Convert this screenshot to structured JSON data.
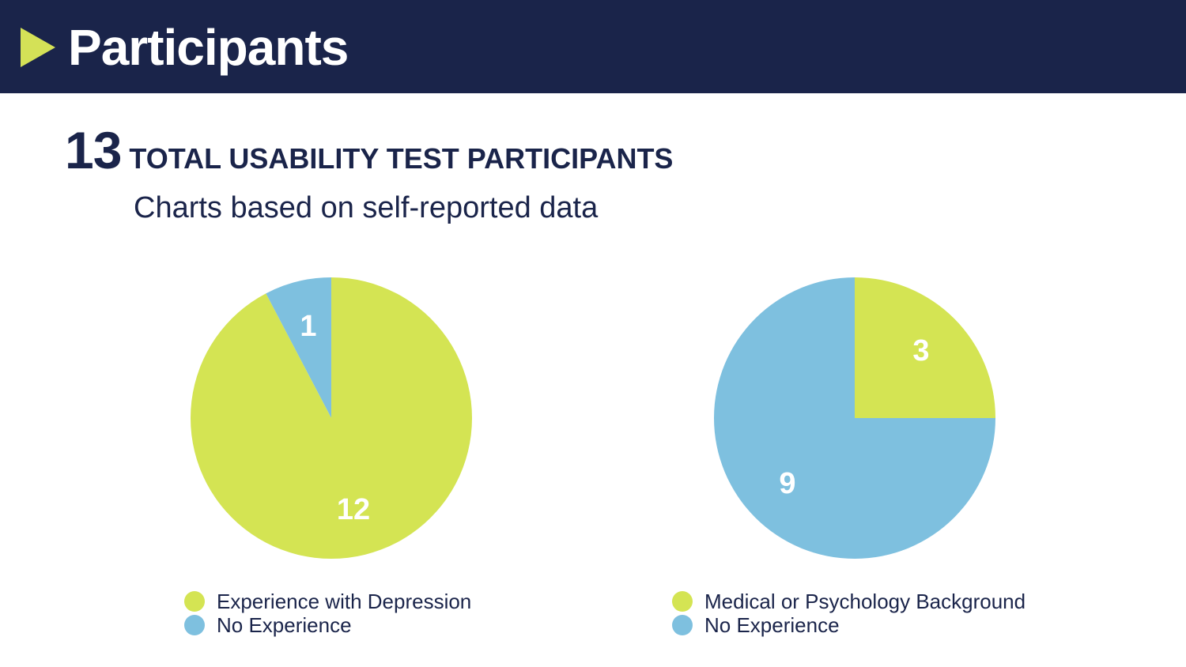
{
  "header": {
    "title": "Participants"
  },
  "summary": {
    "count": "13",
    "count_label": "TOTAL USABILITY TEST PARTICIPANTS",
    "subtitle": "Charts based on self-reported data"
  },
  "colors": {
    "header_bg": "#1a244a",
    "arrow": "#d4e157",
    "green": "#d4e453",
    "blue": "#7ec0df",
    "text_dark": "#1a244a",
    "label_text": "#ffffff"
  },
  "chart_data": [
    {
      "type": "pie",
      "title": "",
      "series": [
        {
          "name": "Experience with Depression",
          "value": 12,
          "label": "12",
          "color": "#d4e453"
        },
        {
          "name": "No Experience",
          "value": 1,
          "label": "1",
          "color": "#7ec0df"
        }
      ],
      "legend": "bottom-left"
    },
    {
      "type": "pie",
      "title": "",
      "series": [
        {
          "name": "Medical or Psychology Background",
          "value": 3,
          "label": "3",
          "color": "#d4e453"
        },
        {
          "name": "No Experience",
          "value": 9,
          "label": "9",
          "color": "#7ec0df"
        }
      ],
      "legend": "bottom-left"
    }
  ]
}
